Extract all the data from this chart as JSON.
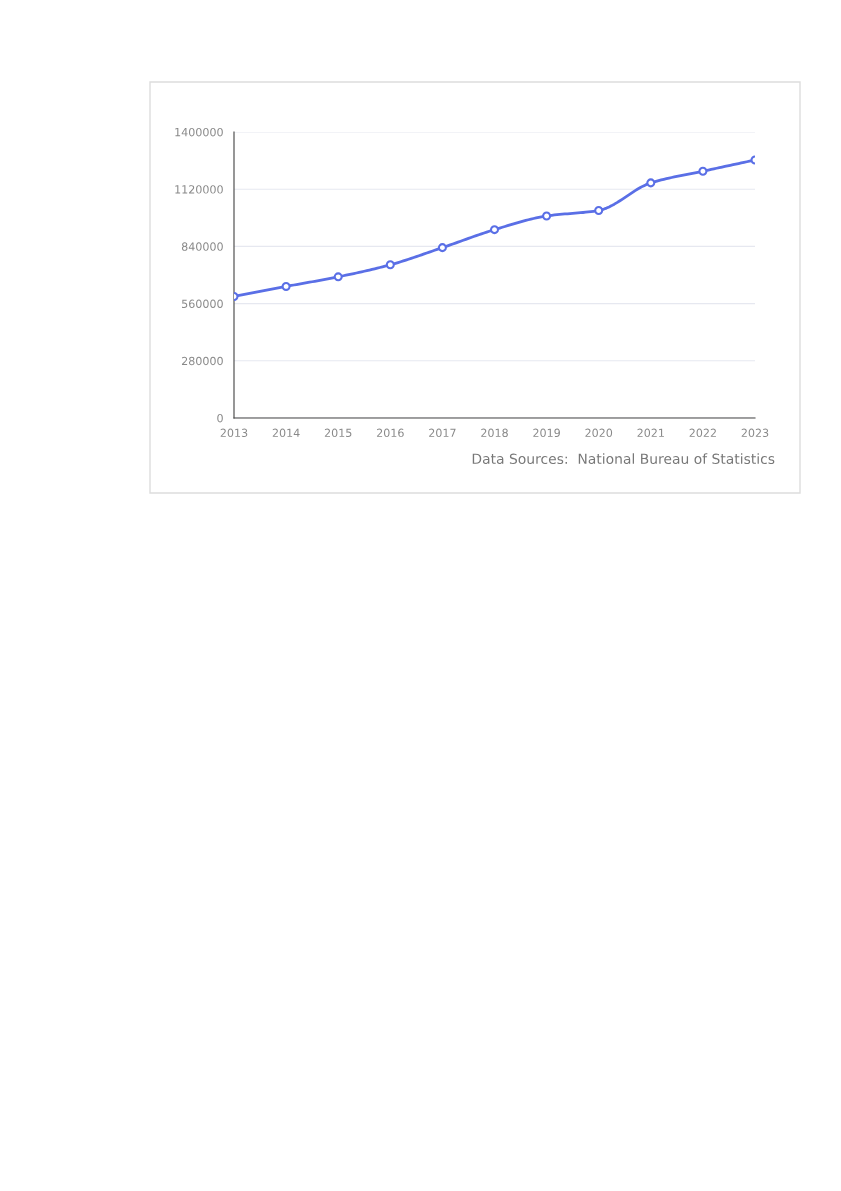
{
  "chart_data": {
    "type": "line",
    "categories": [
      "2013",
      "2014",
      "2015",
      "2016",
      "2017",
      "2018",
      "2019",
      "2020",
      "2021",
      "2022",
      "2023"
    ],
    "series": [
      {
        "color": "#5a6fe6",
        "values": [
          595000,
          644000,
          691000,
          750000,
          834000,
          922000,
          989000,
          1016000,
          1151000,
          1208000,
          1263000
        ]
      }
    ],
    "ylim": [
      0,
      1400000
    ],
    "yticks": [
      0,
      280000,
      560000,
      840000,
      1120000,
      1400000
    ],
    "grid": "y",
    "marker": "circle",
    "line_style": "solid",
    "annotations": [
      "Data Sources:  National Bureau of Statistics"
    ]
  }
}
